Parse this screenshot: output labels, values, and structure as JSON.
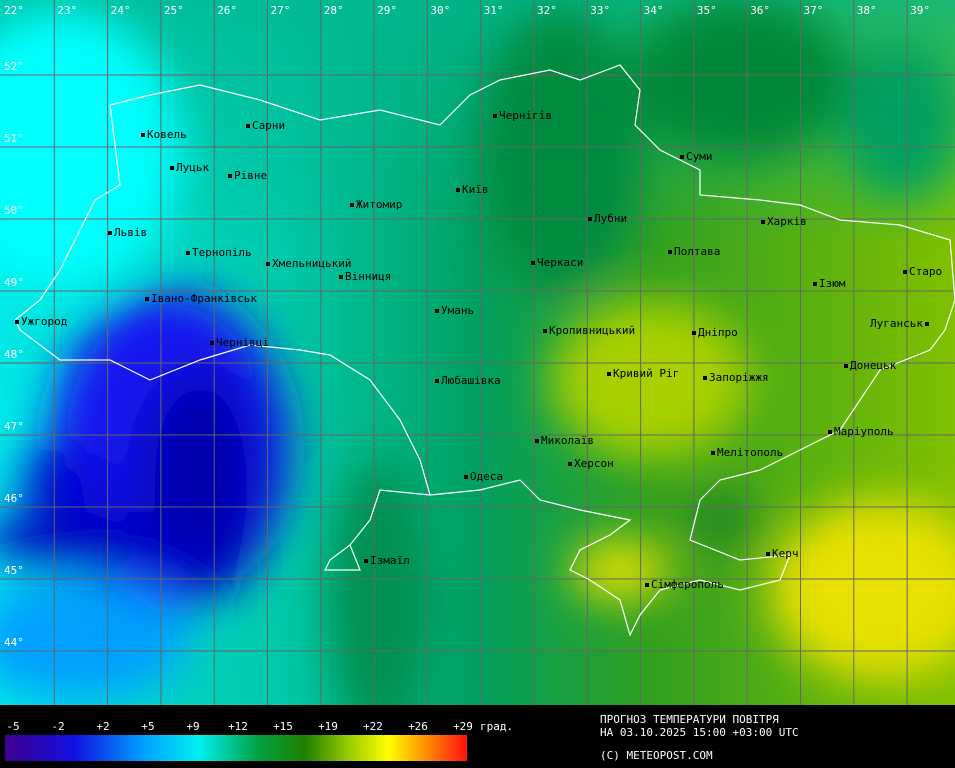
{
  "map": {
    "longitude_labels": [
      "22°",
      "23°",
      "24°",
      "25°",
      "26°",
      "27°",
      "28°",
      "29°",
      "30°",
      "31°",
      "32°",
      "33°",
      "34°",
      "35°",
      "36°",
      "37°",
      "38°",
      "39°"
    ],
    "latitude_labels": [
      "52°",
      "51°",
      "50°",
      "49°",
      "48°",
      "47°",
      "46°",
      "45°",
      "44°"
    ],
    "cities": [
      "Ковель",
      "Сарни",
      "Луцьк",
      "Рівне",
      "Житомир",
      "Чернігів",
      "Київ",
      "Суми",
      "Лубни",
      "Харків",
      "Львів",
      "Тернопіль",
      "Хмельницький",
      "Вінниця",
      "Черкаси",
      "Полтава",
      "Ізюм",
      "Старо",
      "Івано-Франківськ",
      "Ужгород",
      "Умань",
      "Кропивницький",
      "Дніпро",
      "Луганськ",
      "Чернівці",
      "Любашівка",
      "Кривий Ріг",
      "Запоріжжя",
      "Донецьк",
      "Маріуполь",
      "Миколаїв",
      "Херсон",
      "Мелітополь",
      "Одеса",
      "Ізмаїл",
      "Керч",
      "Сімферополь"
    ]
  },
  "legend": {
    "ticks": [
      "-5",
      "-2",
      "+2",
      "+5",
      "+9",
      "+12",
      "+15",
      "+19",
      "+22",
      "+26",
      "+29"
    ],
    "unit": "град."
  },
  "caption": {
    "line1": "ПРОГНОЗ ТЕМПЕРАТУРИ ПОВІТРЯ",
    "line2": "НА 03.10.2025 15:00 +03:00 UTC",
    "copyright": "(C) METEOPOST.COM"
  }
}
